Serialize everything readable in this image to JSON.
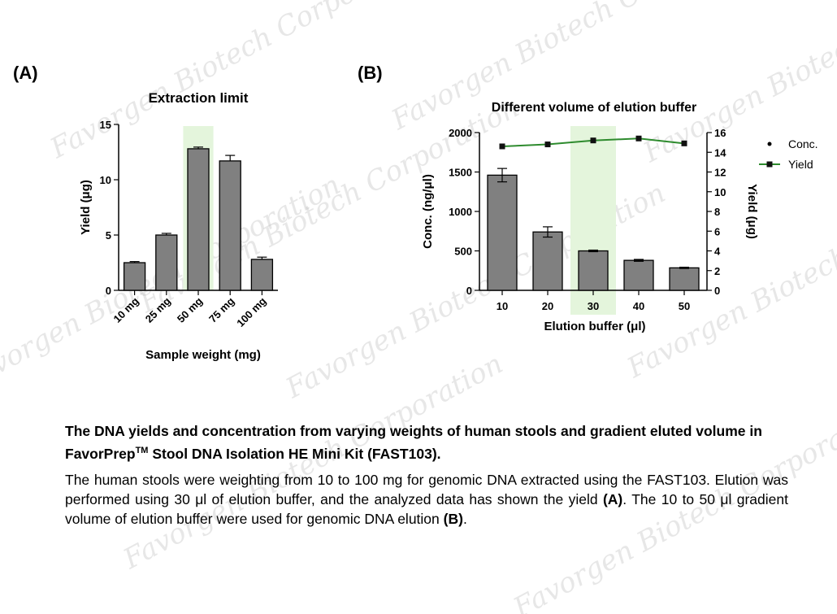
{
  "panel_a_label": "(A)",
  "panel_b_label": "(B)",
  "watermark": {
    "lines": [
      "Favorgen Biotech Corporation",
      "Favorgen Biotech Corporation",
      "Favorgen Biotech Corporation",
      "Favorgen Biotech Corporation",
      "Favorgen Biotech Corporation",
      "Favorgen Biotech Corporation",
      "Favorgen Biotech Corporation",
      "Favorgen Biotech Corporation",
      "Favorgen Biotech Corporation"
    ]
  },
  "chart_data": [
    {
      "id": "A",
      "type": "bar",
      "title": "Extraction limit",
      "xlabel": "Sample weight (mg)",
      "ylabel": "Yield (μg)",
      "categories": [
        "10 mg",
        "25 mg",
        "50 mg",
        "75 mg",
        "100 mg"
      ],
      "values": [
        2.5,
        5.0,
        12.8,
        11.7,
        2.8
      ],
      "errors": [
        0.1,
        0.15,
        0.15,
        0.5,
        0.2
      ],
      "ylim": [
        0,
        15
      ],
      "yticks": [
        "0",
        "5",
        "10",
        "15"
      ],
      "yticks_values": [
        0,
        5,
        10,
        15
      ],
      "highlight_index": 2,
      "bar_color": "#808080",
      "highlight_color": "#e4f5dc"
    },
    {
      "id": "B",
      "type": "bar+line",
      "title": "Different volume of elution buffer",
      "xlabel": "Elution buffer (μl)",
      "ylabel": "Conc. (ng/μl)",
      "y2label": "Yield (μg)",
      "categories": [
        "10",
        "20",
        "30",
        "40",
        "50"
      ],
      "series": [
        {
          "name": "Conc.",
          "axis": "left",
          "kind": "bar",
          "values": [
            1460,
            740,
            500,
            380,
            285
          ],
          "errors": [
            85,
            65,
            10,
            12,
            8
          ],
          "color": "#808080"
        },
        {
          "name": "Yield",
          "axis": "right",
          "kind": "line",
          "values": [
            14.6,
            14.8,
            15.2,
            15.4,
            14.9
          ],
          "color": "#2e8b2e"
        }
      ],
      "ylim": [
        0,
        2000
      ],
      "y2lim": [
        0,
        16
      ],
      "yticks": [
        "0",
        "500",
        "1000",
        "1500",
        "2000"
      ],
      "yticks_values": [
        0,
        500,
        1000,
        1500,
        2000
      ],
      "y2ticks": [
        "0",
        "2",
        "4",
        "6",
        "8",
        "10",
        "12",
        "14",
        "16"
      ],
      "y2ticks_values": [
        0,
        2,
        4,
        6,
        8,
        10,
        12,
        14,
        16
      ],
      "legend": [
        {
          "label": "Conc.",
          "marker": "dot"
        },
        {
          "label": "Yield",
          "marker": "line-square"
        }
      ],
      "legend_position": "right",
      "highlight_index": 2,
      "highlight_color": "#e4f5dc"
    }
  ],
  "caption": {
    "title_part1": "The DNA yields and concentration from varying weights of human stools and gradient eluted volume in FavorPrep",
    "title_sup": "TM",
    "title_part2": " Stool DNA Isolation HE Mini Kit (FAST103).",
    "body_1": "The human stools were weighting from 10 to 100 mg for genomic DNA extracted using the FAST103. Elution was performed using 30 μl of elution buffer, and the analyzed data has shown the yield ",
    "body_ref_a": "(A)",
    "body_2": ". The 10 to 50 μl gradient volume of elution buffer were used for genomic DNA elution ",
    "body_ref_b": "(B)",
    "body_3": "."
  }
}
